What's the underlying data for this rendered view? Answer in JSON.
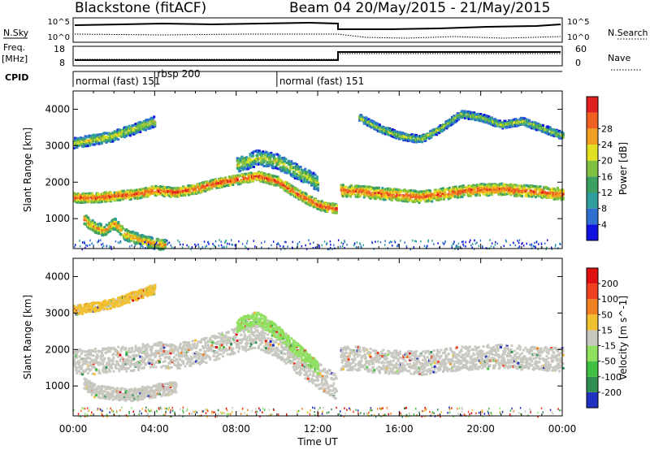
{
  "header": {
    "title": "Blackstone (fitACF)",
    "beam_info": "Beam 04 20/May/2015 - 21/May/2015"
  },
  "top_panels": {
    "nsky_label": "N.Sky",
    "nsearch_label": "N.Search",
    "nsky_ticks": [
      "10^5",
      "10^0"
    ],
    "nsearch_ticks": [
      "10^5",
      "10^0"
    ],
    "freq_label": "Freq.",
    "freq_unit": "[MHz]",
    "freq_ticks": [
      "18",
      "8"
    ],
    "nave_label": "Nave",
    "nave_ticks": [
      "60",
      "0"
    ],
    "cpid_label": "CPID",
    "cpid_segments": [
      {
        "label": "normal (fast) 151",
        "start": 0,
        "end": 4.0
      },
      {
        "label": "rbsp 200",
        "start": 4.0,
        "end": 10.0
      },
      {
        "label": "normal (fast) 151",
        "start": 10.0,
        "end": 24.0
      }
    ]
  },
  "chart_data": [
    {
      "type": "heatmap",
      "name": "power",
      "ylabel": "Slant Range [km]",
      "ylim": [
        180,
        4500
      ],
      "yticks": [
        1000,
        2000,
        3000,
        4000
      ],
      "xlim": [
        0,
        24
      ],
      "colorbar_label": "Power [dB]",
      "colorbar_ticks": [
        "4",
        "8",
        "12",
        "16",
        "20",
        "24",
        "28"
      ],
      "colorbar_colors": [
        "#1010e0",
        "#2f6fd0",
        "#2f9e9e",
        "#3ca060",
        "#80c040",
        "#e0e020",
        "#f0a020",
        "#f06020",
        "#e02020"
      ],
      "bands": [
        {
          "x": [
            0,
            1,
            2,
            3,
            4,
            5,
            6,
            7,
            8,
            9,
            10,
            11,
            12,
            12.9
          ],
          "y": [
            1600,
            1600,
            1650,
            1700,
            1800,
            1750,
            1850,
            2000,
            2100,
            2200,
            2050,
            1700,
            1400,
            1300
          ],
          "width": 260,
          "intensity": 0.85
        },
        {
          "x": [
            13.1,
            14,
            15,
            16,
            17,
            18,
            19,
            20,
            21,
            22,
            23,
            24
          ],
          "y": [
            1800,
            1780,
            1720,
            1680,
            1620,
            1700,
            1780,
            1820,
            1840,
            1800,
            1750,
            1700
          ],
          "width": 320,
          "intensity": 0.8
        },
        {
          "x": [
            0,
            1,
            2,
            3,
            4
          ],
          "y": [
            3100,
            3200,
            3300,
            3500,
            3700
          ],
          "width": 280,
          "intensity": 0.3
        },
        {
          "x": [
            8,
            9,
            10,
            11,
            12
          ],
          "y": [
            2500,
            2700,
            2600,
            2300,
            2000
          ],
          "width": 420,
          "intensity": 0.25
        },
        {
          "x": [
            14,
            15,
            16,
            17,
            18,
            19,
            20,
            21,
            22,
            23,
            24
          ],
          "y": [
            3800,
            3500,
            3300,
            3200,
            3500,
            3900,
            3800,
            3600,
            3700,
            3500,
            3300
          ],
          "width": 200,
          "intensity": 0.2
        },
        {
          "x": [
            0.5,
            1,
            1.5,
            2,
            2.5,
            3,
            3.5,
            4,
            4.5
          ],
          "y": [
            1000,
            800,
            700,
            900,
            600,
            500,
            400,
            350,
            300
          ],
          "width": 300,
          "intensity": 0.6
        }
      ]
    },
    {
      "type": "heatmap",
      "name": "velocity",
      "xlabel": "Time UT",
      "ylabel": "Slant Range [km]",
      "ylim": [
        180,
        4500
      ],
      "yticks": [
        1000,
        2000,
        3000,
        4000
      ],
      "xlim": [
        0,
        24
      ],
      "xticks": [
        "00:00",
        "04:00",
        "08:00",
        "12:00",
        "16:00",
        "20:00",
        "00:00"
      ],
      "colorbar_label": "Velocity [m s^-1]",
      "colorbar_ticks": [
        "200",
        "100",
        "50",
        "15",
        "-15",
        "-50",
        "-100",
        "-200"
      ],
      "colorbar_colors": [
        "#2030c0",
        "#2f8f50",
        "#40c040",
        "#90e060",
        "#c8c8c0",
        "#f0c030",
        "#f08020",
        "#f04020",
        "#e01010"
      ],
      "bands": [
        {
          "x": [
            0,
            1,
            2,
            3,
            4,
            5,
            6,
            7,
            8,
            9,
            10,
            11,
            12,
            12.9
          ],
          "y": [
            1700,
            1700,
            1750,
            1800,
            1900,
            1850,
            1950,
            2100,
            2300,
            2400,
            2150,
            1700,
            1300,
            1000
          ],
          "width": 700,
          "color": "#c8c8c0"
        },
        {
          "x": [
            13.1,
            14,
            15,
            16,
            17,
            18,
            19,
            20,
            21,
            22,
            23,
            24
          ],
          "y": [
            1800,
            1780,
            1700,
            1680,
            1650,
            1720,
            1780,
            1820,
            1840,
            1800,
            1780,
            1750
          ],
          "width": 650,
          "color": "#c8c8c0"
        },
        {
          "x": [
            0,
            1,
            2,
            3,
            4
          ],
          "y": [
            3100,
            3200,
            3300,
            3500,
            3700
          ],
          "width": 260,
          "color": "#f0c030"
        },
        {
          "x": [
            0.5,
            1,
            2,
            3,
            4,
            5
          ],
          "y": [
            1100,
            900,
            800,
            800,
            900,
            1000
          ],
          "width": 350,
          "color": "#c8c8c0"
        },
        {
          "x": [
            8,
            9,
            10,
            11,
            12
          ],
          "y": [
            2700,
            2900,
            2500,
            2000,
            1500
          ],
          "width": 350,
          "color": "#90e060"
        }
      ]
    }
  ],
  "colors": {
    "frame": "#000000",
    "background": "#ffffff"
  }
}
